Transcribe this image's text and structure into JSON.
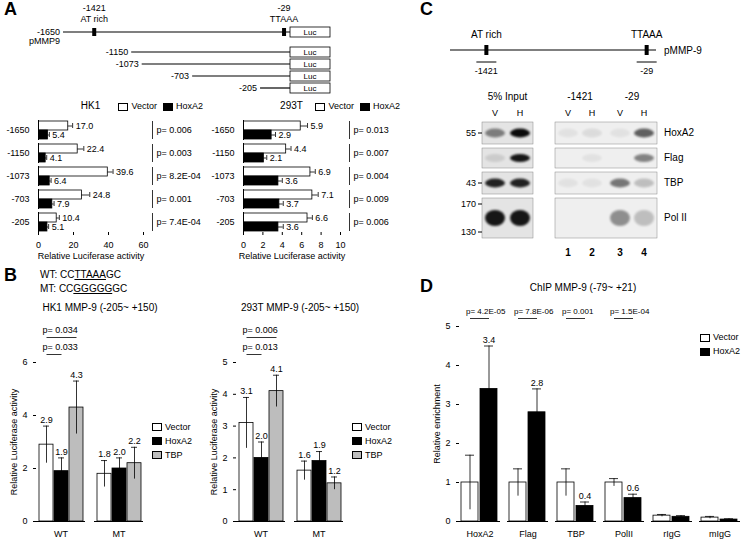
{
  "panel_labels": [
    "A",
    "B",
    "C",
    "D"
  ],
  "promoter_constructs": {
    "name": "pMMP9",
    "starts": [
      -1650,
      -1150,
      -1073,
      -703,
      -205
    ],
    "reporter": "Luc",
    "sites": [
      {
        "position": -1421,
        "label": "AT rich"
      },
      {
        "position": -29,
        "label": "TTAAA"
      }
    ]
  },
  "mutation": [
    {
      "label": "WT:",
      "parts": [
        "CC",
        "TTAAA",
        "GC"
      ]
    },
    {
      "label": "MT:",
      "parts": [
        "CC",
        "GGGGG",
        "GC"
      ]
    }
  ],
  "chip_map": {
    "name": "pMMP-9",
    "sites": [
      {
        "position": -1421,
        "label": "AT rich"
      },
      {
        "position": -29,
        "label": "TTAAA"
      }
    ]
  },
  "blot": {
    "groups": [
      {
        "label": "5% Input",
        "lanes": [
          "V",
          "H"
        ]
      },
      {
        "label": "-1421",
        "lanes": [
          "V",
          "H"
        ]
      },
      {
        "label": "-29",
        "lanes": [
          "V",
          "H"
        ]
      }
    ],
    "lane_numbers": [
      1,
      2,
      3,
      4
    ],
    "rows": [
      {
        "label": "HoxA2",
        "markers": [
          55
        ],
        "signal": [
          0.45,
          0.95,
          0.05,
          0.08,
          0.05,
          0.6
        ]
      },
      {
        "label": "Flag",
        "markers": [],
        "signal": [
          0.1,
          0.9,
          0.0,
          0.05,
          0.0,
          0.45
        ]
      },
      {
        "label": "TBP",
        "markers": [
          43
        ],
        "signal": [
          0.85,
          0.85,
          0.05,
          0.05,
          0.5,
          0.2
        ]
      },
      {
        "label": "Pol II",
        "markers": [
          170,
          130
        ],
        "signal": [
          0.9,
          0.9,
          0.0,
          0.0,
          0.4,
          0.2
        ]
      }
    ]
  },
  "chart_data": [
    {
      "type": "bar",
      "orientation": "horizontal",
      "title": "HK1",
      "categories": [
        "-1650",
        "-1150",
        "-1073",
        "-703",
        "-205"
      ],
      "series": [
        {
          "name": "Vector",
          "color": "#ffffff",
          "values": [
            17.0,
            22.4,
            39.6,
            24.8,
            10.4
          ],
          "value_labels": [
            "17.0",
            "22.4",
            "39.6",
            "24.8",
            "10.4"
          ],
          "errors": [
            2.5,
            3.5,
            3.0,
            4.5,
            1.5
          ]
        },
        {
          "name": "HoxA2",
          "color": "#000000",
          "values": [
            5.4,
            4.1,
            6.4,
            7.9,
            5.1
          ],
          "value_labels": [
            "5.4",
            "4.1",
            "6.4",
            "7.9",
            "5.1"
          ],
          "errors": [
            0.8,
            0.6,
            0.8,
            1.0,
            0.7
          ]
        }
      ],
      "xlim": [
        0,
        60
      ],
      "xticks": [
        0,
        20,
        40,
        60
      ],
      "xlabel": "Relative Luciferase activity",
      "data_labels": true,
      "legend": "top-right",
      "annotations": [
        {
          "category": "-1650",
          "text": "p= 0.006"
        },
        {
          "category": "-1150",
          "text": "p= 0.003"
        },
        {
          "category": "-1073",
          "text": "p= 8.2E-04"
        },
        {
          "category": "-703",
          "text": "p= 0.001"
        },
        {
          "category": "-205",
          "text": "p= 7.4E-04"
        }
      ]
    },
    {
      "type": "bar",
      "orientation": "horizontal",
      "title": "293T",
      "categories": [
        "-1650",
        "-1150",
        "-1073",
        "-703",
        "-205"
      ],
      "series": [
        {
          "name": "Vector",
          "color": "#ffffff",
          "values": [
            5.9,
            4.4,
            6.9,
            7.1,
            6.6
          ],
          "value_labels": [
            "5.9",
            "4.4",
            "6.9",
            "7.1",
            "6.6"
          ],
          "errors": [
            0.7,
            0.5,
            0.5,
            0.6,
            0.5
          ]
        },
        {
          "name": "HoxA2",
          "color": "#000000",
          "values": [
            2.9,
            2.1,
            3.6,
            3.7,
            3.6
          ],
          "value_labels": [
            "2.9",
            "2.1",
            "3.6",
            "3.7",
            "3.6"
          ],
          "errors": [
            0.4,
            0.3,
            0.4,
            0.4,
            0.5
          ]
        }
      ],
      "xlim": [
        0,
        10
      ],
      "xticks": [
        0,
        2,
        4,
        6,
        8,
        10
      ],
      "xlabel": "Relative Luciferase activity",
      "data_labels": true,
      "legend": "top-right",
      "annotations": [
        {
          "category": "-1650",
          "text": "p= 0.013"
        },
        {
          "category": "-1150",
          "text": "p= 0.007"
        },
        {
          "category": "-1073",
          "text": "p= 0.004"
        },
        {
          "category": "-703",
          "text": "p= 0.009"
        },
        {
          "category": "-205",
          "text": "p= 0.006"
        }
      ]
    },
    {
      "type": "bar",
      "title": "HK1 MMP-9 (-205~ +150)",
      "categories": [
        "WT",
        "MT"
      ],
      "series": [
        {
          "name": "Vector",
          "color": "#ffffff",
          "values": [
            2.9,
            1.8
          ],
          "value_labels": [
            "2.9",
            "1.8"
          ],
          "errors": [
            0.7,
            0.5
          ]
        },
        {
          "name": "HoxA2",
          "color": "#000000",
          "values": [
            1.9,
            2.0
          ],
          "value_labels": [
            "1.9",
            "2.0"
          ],
          "errors": [
            0.5,
            0.4
          ]
        },
        {
          "name": "TBP",
          "color": "#bdbdbd",
          "values": [
            4.3,
            2.2
          ],
          "value_labels": [
            "4.3",
            "2.2"
          ],
          "errors": [
            1.0,
            0.6
          ]
        }
      ],
      "ylim": [
        0,
        6
      ],
      "yticks": [
        0,
        2,
        4,
        6
      ],
      "ylabel": "Relative Luciferase activity",
      "data_labels": true,
      "legend": "right",
      "annotations": [
        {
          "category": "WT",
          "from": "Vector",
          "to": "HoxA2",
          "text": "p= 0.033"
        },
        {
          "category": "WT",
          "from": "Vector",
          "to": "TBP",
          "text": "p= 0.034"
        }
      ]
    },
    {
      "type": "bar",
      "title": "293T MMP-9 (-205~ +150)",
      "categories": [
        "WT",
        "MT"
      ],
      "series": [
        {
          "name": "Vector",
          "color": "#ffffff",
          "values": [
            3.1,
            1.6
          ],
          "value_labels": [
            "3.1",
            "1.6"
          ],
          "errors": [
            0.8,
            0.3
          ]
        },
        {
          "name": "HoxA2",
          "color": "#000000",
          "values": [
            2.0,
            1.9
          ],
          "value_labels": [
            "2.0",
            "1.9"
          ],
          "errors": [
            0.5,
            0.3
          ]
        },
        {
          "name": "TBP",
          "color": "#bdbdbd",
          "values": [
            4.1,
            1.2
          ],
          "value_labels": [
            "4.1",
            "1.2"
          ],
          "errors": [
            0.5,
            0.2
          ]
        }
      ],
      "ylim": [
        0,
        5
      ],
      "yticks": [
        0,
        1,
        2,
        3,
        4,
        5
      ],
      "ylabel": "Relative Luciferase activity",
      "data_labels": true,
      "legend": "right",
      "annotations": [
        {
          "category": "WT",
          "from": "Vector",
          "to": "HoxA2",
          "text": "p= 0.013"
        },
        {
          "category": "WT",
          "from": "Vector",
          "to": "TBP",
          "text": "p= 0.006"
        }
      ]
    },
    {
      "type": "bar",
      "title": "ChIP MMP-9 (-79~ +21)",
      "categories": [
        "HoxA2",
        "Flag",
        "TBP",
        "PolII",
        "rIgG",
        "mIgG"
      ],
      "series": [
        {
          "name": "Vector",
          "color": "#ffffff",
          "values": [
            1.0,
            1.0,
            1.0,
            1.0,
            0.15,
            0.1
          ],
          "errors": [
            0.7,
            0.35,
            0.35,
            0.1,
            0.03,
            0.03
          ],
          "data_labels": false
        },
        {
          "name": "HoxA2",
          "color": "#000000",
          "values": [
            3.4,
            2.8,
            0.4,
            0.6,
            0.12,
            0.05
          ],
          "value_labels": [
            "3.4",
            "2.8",
            "0.4",
            "0.6",
            null,
            null
          ],
          "errors": [
            1.1,
            0.6,
            0.1,
            0.1,
            0.03,
            0.02
          ],
          "data_labels": true
        }
      ],
      "ylim": [
        0,
        5
      ],
      "yticks": [
        0,
        1,
        2,
        3,
        4,
        5
      ],
      "ylabel": "Relative enrichment",
      "data_labels": true,
      "legend": "top-right",
      "annotations": [
        {
          "category": "HoxA2",
          "from": "Vector",
          "to": "HoxA2",
          "text": "p= 4.2E-05"
        },
        {
          "category": "Flag",
          "from": "Vector",
          "to": "HoxA2",
          "text": "p= 7.8E-06"
        },
        {
          "category": "TBP",
          "from": "Vector",
          "to": "HoxA2",
          "text": "p= 0.001"
        },
        {
          "category": "PolII",
          "from": "Vector",
          "to": "HoxA2",
          "text": "p= 1.5E-04"
        }
      ]
    }
  ]
}
